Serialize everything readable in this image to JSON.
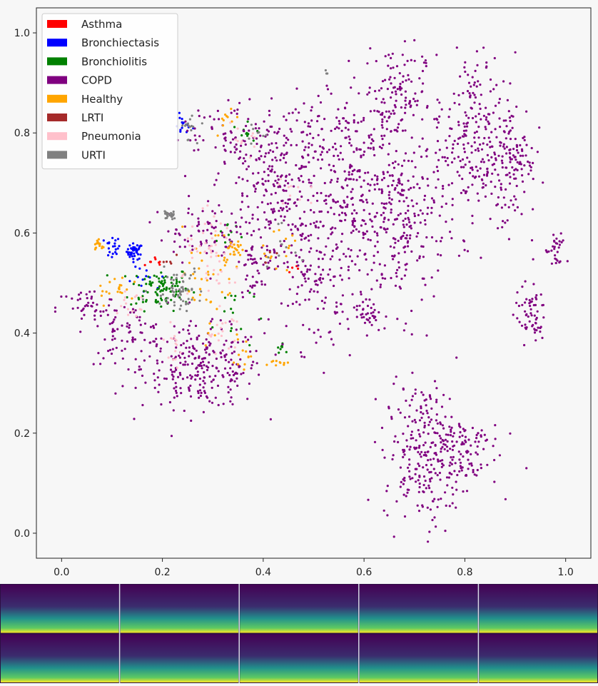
{
  "chart_data": {
    "type": "scatter",
    "title": "",
    "xlabel": "",
    "ylabel": "",
    "xlim": [
      -0.05,
      1.05
    ],
    "ylim": [
      -0.05,
      1.05
    ],
    "x_ticks": [
      "0.0",
      "0.2",
      "0.4",
      "0.6",
      "0.8",
      "1.0"
    ],
    "y_ticks": [
      "0.0",
      "0.2",
      "0.4",
      "0.6",
      "0.8",
      "1.0"
    ],
    "grid": false,
    "legend_position": "top-left",
    "series": [
      {
        "name": "Asthma",
        "color": "#ff0000",
        "clusters": [
          {
            "x": 0.19,
            "y": 0.54,
            "sx": 0.012,
            "sy": 0.008,
            "n": 8
          },
          {
            "x": 0.46,
            "y": 0.53,
            "sx": 0.01,
            "sy": 0.006,
            "n": 4
          }
        ]
      },
      {
        "name": "Bronchiectasis",
        "color": "#0000ff",
        "clusters": [
          {
            "x": 0.145,
            "y": 0.563,
            "sx": 0.008,
            "sy": 0.008,
            "n": 40
          },
          {
            "x": 0.1,
            "y": 0.57,
            "sx": 0.008,
            "sy": 0.012,
            "n": 20
          },
          {
            "x": 0.24,
            "y": 0.815,
            "sx": 0.01,
            "sy": 0.01,
            "n": 15
          },
          {
            "x": 0.17,
            "y": 0.5,
            "sx": 0.02,
            "sy": 0.015,
            "n": 12
          }
        ]
      },
      {
        "name": "Bronchiolitis",
        "color": "#008000",
        "clusters": [
          {
            "x": 0.195,
            "y": 0.49,
            "sx": 0.03,
            "sy": 0.022,
            "n": 90
          },
          {
            "x": 0.435,
            "y": 0.37,
            "sx": 0.004,
            "sy": 0.004,
            "n": 8
          },
          {
            "x": 0.37,
            "y": 0.8,
            "sx": 0.015,
            "sy": 0.01,
            "n": 10
          },
          {
            "x": 0.33,
            "y": 0.6,
            "sx": 0.015,
            "sy": 0.02,
            "n": 10
          },
          {
            "x": 0.34,
            "y": 0.44,
            "sx": 0.02,
            "sy": 0.04,
            "n": 15
          }
        ]
      },
      {
        "name": "COPD",
        "color": "#800080",
        "clusters": [
          {
            "x": 0.28,
            "y": 0.33,
            "sx": 0.06,
            "sy": 0.04,
            "n": 260
          },
          {
            "x": 0.13,
            "y": 0.4,
            "sx": 0.04,
            "sy": 0.03,
            "n": 80
          },
          {
            "x": 0.05,
            "y": 0.45,
            "sx": 0.03,
            "sy": 0.02,
            "n": 40
          },
          {
            "x": 0.42,
            "y": 0.7,
            "sx": 0.06,
            "sy": 0.06,
            "n": 200
          },
          {
            "x": 0.5,
            "y": 0.53,
            "sx": 0.04,
            "sy": 0.08,
            "n": 160
          },
          {
            "x": 0.59,
            "y": 0.67,
            "sx": 0.04,
            "sy": 0.1,
            "n": 220
          },
          {
            "x": 0.68,
            "y": 0.62,
            "sx": 0.04,
            "sy": 0.09,
            "n": 220
          },
          {
            "x": 0.66,
            "y": 0.88,
            "sx": 0.03,
            "sy": 0.05,
            "n": 120
          },
          {
            "x": 0.82,
            "y": 0.78,
            "sx": 0.04,
            "sy": 0.09,
            "n": 260
          },
          {
            "x": 0.9,
            "y": 0.75,
            "sx": 0.02,
            "sy": 0.06,
            "n": 100
          },
          {
            "x": 0.72,
            "y": 0.16,
            "sx": 0.04,
            "sy": 0.07,
            "n": 260
          },
          {
            "x": 0.79,
            "y": 0.17,
            "sx": 0.04,
            "sy": 0.04,
            "n": 90
          },
          {
            "x": 0.93,
            "y": 0.44,
            "sx": 0.015,
            "sy": 0.03,
            "n": 60
          },
          {
            "x": 0.98,
            "y": 0.56,
            "sx": 0.01,
            "sy": 0.02,
            "n": 30
          },
          {
            "x": 0.61,
            "y": 0.44,
            "sx": 0.008,
            "sy": 0.02,
            "n": 30
          },
          {
            "x": 0.34,
            "y": 0.8,
            "sx": 0.05,
            "sy": 0.03,
            "n": 70
          },
          {
            "x": 0.39,
            "y": 0.55,
            "sx": 0.02,
            "sy": 0.04,
            "n": 60
          },
          {
            "x": 0.27,
            "y": 0.6,
            "sx": 0.04,
            "sy": 0.03,
            "n": 70
          },
          {
            "x": 0.49,
            "y": 0.8,
            "sx": 0.05,
            "sy": 0.05,
            "n": 90
          }
        ]
      },
      {
        "name": "Healthy",
        "color": "#ffa500",
        "clusters": [
          {
            "x": 0.075,
            "y": 0.575,
            "sx": 0.006,
            "sy": 0.006,
            "n": 15
          },
          {
            "x": 0.34,
            "y": 0.57,
            "sx": 0.012,
            "sy": 0.012,
            "n": 25
          },
          {
            "x": 0.29,
            "y": 0.48,
            "sx": 0.025,
            "sy": 0.06,
            "n": 40
          },
          {
            "x": 0.43,
            "y": 0.34,
            "sx": 0.008,
            "sy": 0.004,
            "n": 10
          },
          {
            "x": 0.36,
            "y": 0.35,
            "sx": 0.01,
            "sy": 0.02,
            "n": 12
          },
          {
            "x": 0.11,
            "y": 0.49,
            "sx": 0.02,
            "sy": 0.015,
            "n": 20
          },
          {
            "x": 0.33,
            "y": 0.83,
            "sx": 0.015,
            "sy": 0.015,
            "n": 10
          },
          {
            "x": 0.44,
            "y": 0.58,
            "sx": 0.02,
            "sy": 0.02,
            "n": 15
          }
        ]
      },
      {
        "name": "LRTI",
        "color": "#a52a2a",
        "clusters": [
          {
            "x": 0.22,
            "y": 0.54,
            "sx": 0.01,
            "sy": 0.006,
            "n": 5
          },
          {
            "x": 0.42,
            "y": 0.55,
            "sx": 0.01,
            "sy": 0.01,
            "n": 3
          }
        ]
      },
      {
        "name": "Pneumonia",
        "color": "#ffc0cb",
        "clusters": [
          {
            "x": 0.3,
            "y": 0.55,
            "sx": 0.03,
            "sy": 0.04,
            "n": 50
          },
          {
            "x": 0.32,
            "y": 0.4,
            "sx": 0.02,
            "sy": 0.03,
            "n": 20
          },
          {
            "x": 0.22,
            "y": 0.37,
            "sx": 0.01,
            "sy": 0.02,
            "n": 15
          },
          {
            "x": 0.36,
            "y": 0.78,
            "sx": 0.02,
            "sy": 0.02,
            "n": 12
          },
          {
            "x": 0.14,
            "y": 0.45,
            "sx": 0.02,
            "sy": 0.02,
            "n": 15
          },
          {
            "x": 0.45,
            "y": 0.68,
            "sx": 0.02,
            "sy": 0.03,
            "n": 10
          }
        ]
      },
      {
        "name": "URTI",
        "color": "#808080",
        "clusters": [
          {
            "x": 0.215,
            "y": 0.637,
            "sx": 0.006,
            "sy": 0.005,
            "n": 25
          },
          {
            "x": 0.23,
            "y": 0.49,
            "sx": 0.025,
            "sy": 0.02,
            "n": 60
          },
          {
            "x": 0.255,
            "y": 0.81,
            "sx": 0.008,
            "sy": 0.015,
            "n": 15
          },
          {
            "x": 0.525,
            "y": 0.92,
            "sx": 0.002,
            "sy": 0.002,
            "n": 3
          },
          {
            "x": 0.38,
            "y": 0.8,
            "sx": 0.01,
            "sy": 0.01,
            "n": 8
          },
          {
            "x": 0.43,
            "y": 0.58,
            "sx": 0.015,
            "sy": 0.02,
            "n": 10
          }
        ]
      }
    ]
  },
  "spectrogram_strip": {
    "rows": 2,
    "columns": 5
  },
  "colors": {
    "background": "#f7f7f7",
    "axis": "#222222",
    "spectrogram_low": "#440154",
    "spectrogram_mid": "#21908c",
    "spectrogram_high": "#fde725"
  }
}
